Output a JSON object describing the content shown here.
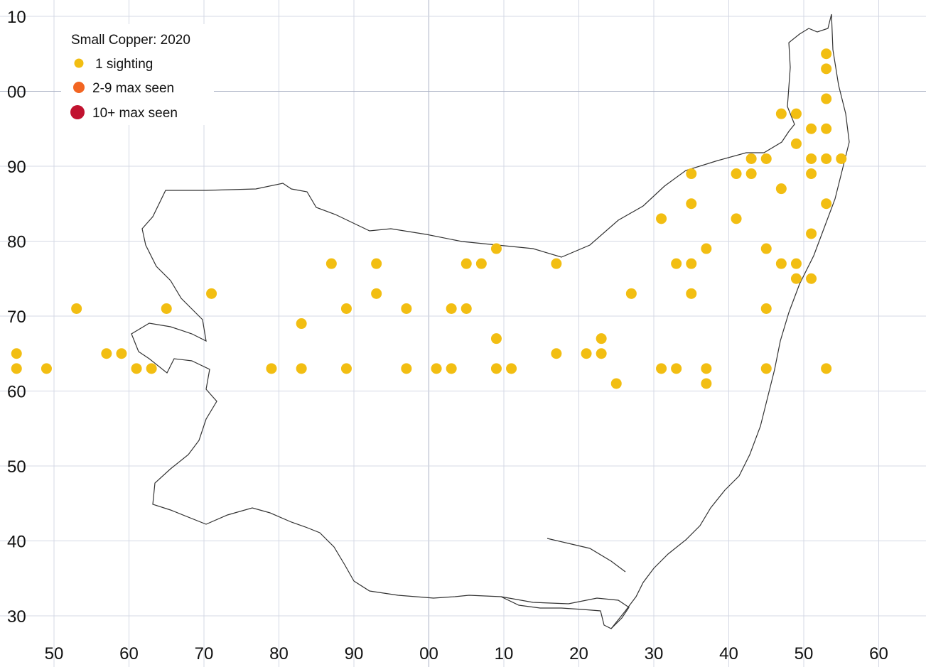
{
  "map": {
    "title": "Small Copper:  2020",
    "x_ticks": [
      "50",
      "60",
      "70",
      "80",
      "90",
      "00",
      "10",
      "20",
      "30",
      "40",
      "50",
      "60"
    ],
    "y_ticks": [
      "10",
      "00",
      "90",
      "80",
      "70",
      "60",
      "50",
      "40",
      "30"
    ],
    "x_range_km": [
      550,
      665
    ],
    "y_range_km": [
      229,
      310
    ],
    "grid": true,
    "legend_placement": "top-left",
    "legend": [
      {
        "key": "c1",
        "label": "1 sighting",
        "color": "#F2BE12"
      },
      {
        "key": "c2",
        "label": "2-9 max seen",
        "color": "#F26522"
      },
      {
        "key": "c3",
        "label": "10+ max seen",
        "color": "#C1122F"
      }
    ],
    "colors": {
      "grid": "#D4D8E4",
      "outline": "#333333"
    },
    "points": {
      "c1": [
        [
          653,
          305
        ],
        [
          653,
          303
        ],
        [
          653,
          299
        ],
        [
          647,
          297
        ],
        [
          649,
          297
        ],
        [
          651,
          295
        ],
        [
          653,
          295
        ],
        [
          649,
          293
        ],
        [
          651,
          291
        ],
        [
          653,
          291
        ],
        [
          655,
          291
        ],
        [
          645,
          291
        ],
        [
          643,
          291
        ],
        [
          643,
          289
        ],
        [
          641,
          289
        ],
        [
          635,
          289
        ],
        [
          651,
          289
        ],
        [
          647,
          287
        ],
        [
          635,
          285
        ],
        [
          653,
          285
        ],
        [
          641,
          283
        ],
        [
          631,
          283
        ],
        [
          651,
          281
        ],
        [
          609,
          279
        ],
        [
          637,
          279
        ],
        [
          645,
          279
        ],
        [
          649,
          277
        ],
        [
          633,
          277
        ],
        [
          635,
          277
        ],
        [
          647,
          277
        ],
        [
          617,
          277
        ],
        [
          607,
          277
        ],
        [
          605,
          277
        ],
        [
          587,
          277
        ],
        [
          593,
          277
        ],
        [
          651,
          275
        ],
        [
          649,
          275
        ],
        [
          645,
          271
        ],
        [
          593,
          273
        ],
        [
          635,
          273
        ],
        [
          627,
          273
        ],
        [
          571,
          273
        ],
        [
          603,
          271
        ],
        [
          605,
          271
        ],
        [
          597,
          271
        ],
        [
          589,
          271
        ],
        [
          565,
          271
        ],
        [
          553,
          271
        ],
        [
          541,
          271
        ],
        [
          539,
          271
        ],
        [
          583,
          269
        ],
        [
          533,
          269
        ],
        [
          531,
          269
        ],
        [
          509,
          269
        ],
        [
          539,
          267
        ],
        [
          531,
          267
        ],
        [
          529,
          267
        ],
        [
          525,
          267
        ],
        [
          513,
          267
        ],
        [
          511,
          267
        ],
        [
          507,
          267
        ],
        [
          505,
          267
        ],
        [
          489,
          265
        ],
        [
          483,
          265
        ],
        [
          491,
          265
        ],
        [
          463,
          265
        ],
        [
          493,
          265
        ],
        [
          537,
          265
        ],
        [
          535,
          265
        ],
        [
          557,
          265
        ],
        [
          545,
          265
        ],
        [
          559,
          265
        ],
        [
          621,
          265
        ],
        [
          623,
          265
        ],
        [
          617,
          265
        ],
        [
          609,
          267
        ],
        [
          623,
          267
        ],
        [
          625,
          261
        ],
        [
          637,
          261
        ],
        [
          645,
          263
        ],
        [
          631,
          263
        ],
        [
          633,
          263
        ],
        [
          637,
          263
        ],
        [
          653,
          263
        ],
        [
          601,
          263
        ],
        [
          603,
          263
        ],
        [
          597,
          263
        ],
        [
          609,
          263
        ],
        [
          611,
          263
        ],
        [
          589,
          263
        ],
        [
          583,
          263
        ],
        [
          579,
          263
        ],
        [
          563,
          263
        ],
        [
          561,
          263
        ],
        [
          549,
          263
        ],
        [
          545,
          263
        ],
        [
          541,
          263
        ],
        [
          529,
          263
        ],
        [
          525,
          263
        ],
        [
          517,
          263
        ],
        [
          511,
          263
        ],
        [
          505,
          263
        ],
        [
          475,
          263
        ],
        [
          463,
          263
        ],
        [
          499,
          265
        ],
        [
          497,
          265
        ],
        [
          491,
          267
        ]
      ],
      "c2": [],
      "c3": []
    }
  }
}
